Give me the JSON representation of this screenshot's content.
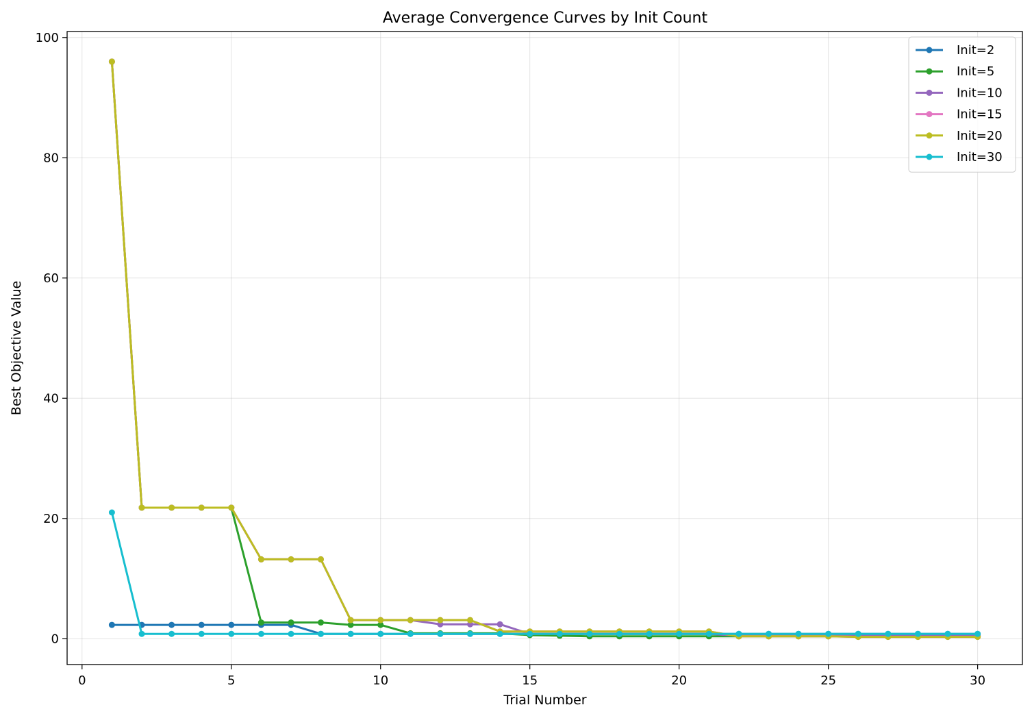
{
  "chart_data": {
    "type": "line",
    "title": "Average Convergence Curves by Init Count",
    "xlabel": "Trial Number",
    "ylabel": "Best Objective Value",
    "xlim": [
      -0.5,
      31.5
    ],
    "ylim": [
      -4.3,
      101
    ],
    "xticks": [
      0,
      5,
      10,
      15,
      20,
      25,
      30
    ],
    "yticks": [
      0,
      20,
      40,
      60,
      80,
      100
    ],
    "grid": true,
    "legend_position": "top-right",
    "x": [
      1,
      2,
      3,
      4,
      5,
      6,
      7,
      8,
      9,
      10,
      11,
      12,
      13,
      14,
      15,
      16,
      17,
      18,
      19,
      20,
      21,
      22,
      23,
      24,
      25,
      26,
      27,
      28,
      29,
      30
    ],
    "series": [
      {
        "name": "Init=2",
        "color": "#1f77b4",
        "values": [
          2.3,
          2.3,
          2.3,
          2.3,
          2.3,
          2.3,
          2.3,
          0.8,
          0.8,
          0.8,
          0.8,
          0.8,
          0.8,
          0.8,
          0.8,
          0.8,
          0.8,
          0.8,
          0.8,
          0.8,
          0.8,
          0.8,
          0.8,
          0.8,
          0.8,
          0.8,
          0.8,
          0.8,
          0.8,
          0.8
        ]
      },
      {
        "name": "Init=5",
        "color": "#2ca02c",
        "values": [
          96,
          21.8,
          21.8,
          21.8,
          21.8,
          2.7,
          2.7,
          2.7,
          2.3,
          2.3,
          0.9,
          0.9,
          0.9,
          0.9,
          0.6,
          0.5,
          0.4,
          0.4,
          0.4,
          0.4,
          0.4,
          0.4,
          0.4,
          0.4,
          0.4,
          0.4,
          0.4,
          0.4,
          0.4,
          0.4
        ]
      },
      {
        "name": "Init=10",
        "color": "#9467bd",
        "values": [
          96,
          21.8,
          21.8,
          21.8,
          21.8,
          13.2,
          13.2,
          13.2,
          3.1,
          3.1,
          3.1,
          2.4,
          2.4,
          2.4,
          0.8,
          0.8,
          0.8,
          0.8,
          0.8,
          0.8,
          0.8,
          0.5,
          0.5,
          0.5,
          0.5,
          0.5,
          0.5,
          0.5,
          0.5,
          0.5
        ]
      },
      {
        "name": "Init=15",
        "color": "#e377c2",
        "values": [
          96,
          21.8,
          21.8,
          21.8,
          21.8,
          13.2,
          13.2,
          13.2,
          3.1,
          3.1,
          3.1,
          3.1,
          3.1,
          1.2,
          1.2,
          1.2,
          1.2,
          1.2,
          1.2,
          1.2,
          1.2,
          0.4,
          0.4,
          0.4,
          0.4,
          0.3,
          0.3,
          0.3,
          0.3,
          0.3
        ]
      },
      {
        "name": "Init=20",
        "color": "#bcbd22",
        "values": [
          96,
          21.8,
          21.8,
          21.8,
          21.8,
          13.2,
          13.2,
          13.2,
          3.1,
          3.1,
          3.1,
          3.1,
          3.1,
          1.2,
          1.2,
          1.2,
          1.2,
          1.2,
          1.2,
          1.2,
          1.2,
          0.4,
          0.4,
          0.4,
          0.4,
          0.3,
          0.3,
          0.3,
          0.3,
          0.3
        ]
      },
      {
        "name": "Init=30",
        "color": "#17becf",
        "values": [
          21,
          0.8,
          0.8,
          0.8,
          0.8,
          0.8,
          0.8,
          0.8,
          0.8,
          0.8,
          0.8,
          0.8,
          0.8,
          0.8,
          0.8,
          0.8,
          0.8,
          0.8,
          0.8,
          0.8,
          0.8,
          0.8,
          0.8,
          0.8,
          0.8,
          0.8,
          0.8,
          0.8,
          0.8,
          0.8
        ]
      }
    ]
  }
}
